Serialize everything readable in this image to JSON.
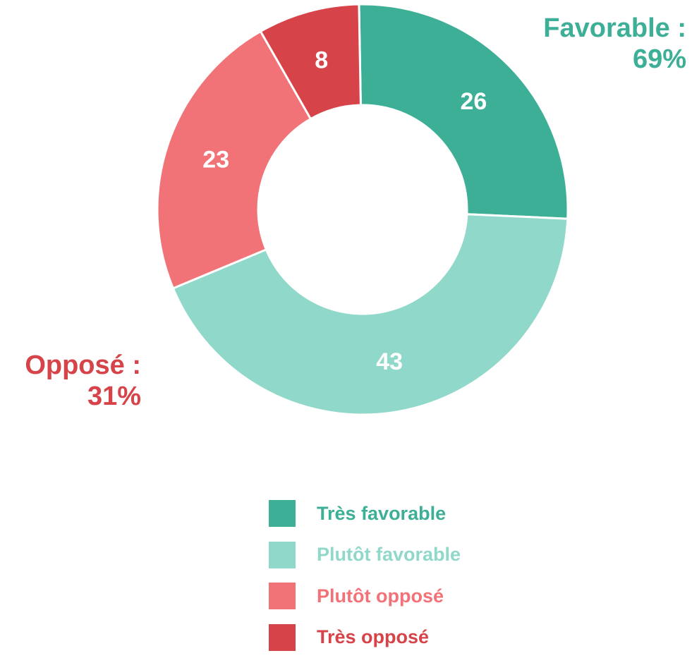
{
  "chart_data": {
    "type": "pie",
    "variant": "donut",
    "categories": [
      "Très favorable",
      "Plutôt favorable",
      "Plutôt opposé",
      "Très opposé"
    ],
    "values": [
      26,
      43,
      23,
      8
    ],
    "colors": [
      "#3daf96",
      "#90d8c9",
      "#f27377",
      "#d6444a"
    ],
    "data_labels": [
      "26",
      "43",
      "23",
      "8"
    ],
    "groups": [
      {
        "label": "Favorable :",
        "value": "69%",
        "color": "#3daf96"
      },
      {
        "label": "Opposé :",
        "value": "31%",
        "color": "#d6444a"
      }
    ],
    "legend": {
      "placement": "bottom",
      "items": [
        "Très favorable",
        "Plutôt favorable",
        "Plutôt opposé",
        "Très opposé"
      ]
    }
  }
}
